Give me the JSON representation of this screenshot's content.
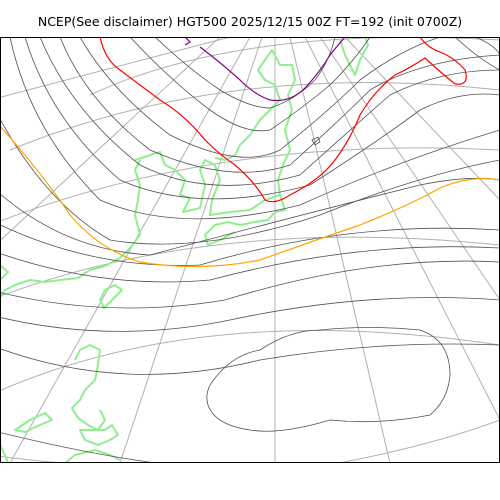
{
  "map": {
    "title": "NCEP(See disclaimer) HGT500 2025/12/15 00Z FT=192 (init 0700Z)"
  },
  "colors": {
    "background": "#ffffff",
    "frame": "#000000",
    "graticule": "#b0b0b0",
    "contour": "#505050",
    "contour_5400": "#ffa500",
    "contour_5100": "#ff0000",
    "contour_4800": "#800080",
    "coastline": "#90ee90"
  }
}
